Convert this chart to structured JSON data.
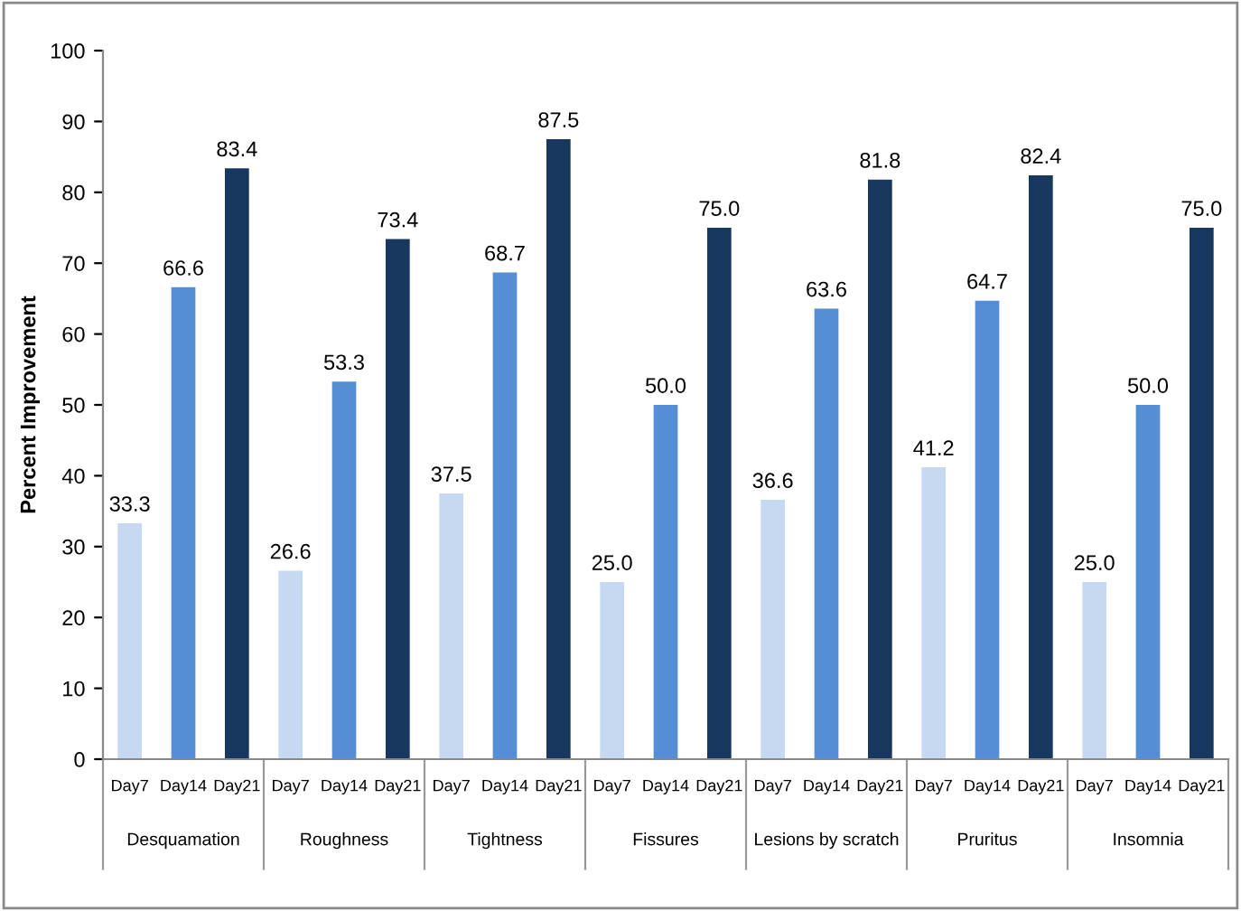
{
  "chart_data": {
    "type": "bar",
    "ylabel": "Percent Improvement",
    "categories": [
      "Day7",
      "Day14",
      "Day21",
      "Day7",
      "Day14",
      "Day21",
      "Day7",
      "Day14",
      "Day21",
      "Day7",
      "Day14",
      "Day21",
      "Day7",
      "Day14",
      "Day21",
      "Day7",
      "Day14",
      "Day21",
      "Day7",
      "Day14",
      "Day21"
    ],
    "values": [
      33.3,
      66.6,
      83.4,
      26.6,
      53.3,
      73.4,
      37.5,
      68.7,
      87.5,
      25.0,
      50.0,
      75.0,
      36.6,
      63.6,
      81.8,
      41.2,
      64.7,
      82.4,
      25.0,
      50.0,
      75.0
    ],
    "value_labels": [
      "33.3",
      "66.6",
      "83.4",
      "26.6",
      "53.3",
      "73.4",
      "37.5",
      "68.7",
      "87.5",
      "25.0",
      "50.0",
      "75.0",
      "36.6",
      "63.6",
      "81.8",
      "41.2",
      "64.7",
      "82.4",
      "25.0",
      "50.0",
      "75.0"
    ],
    "colors": [
      "#c6d9f1",
      "#558ed5",
      "#17375e",
      "#c6d9f1",
      "#558ed5",
      "#17375e",
      "#c6d9f1",
      "#558ed5",
      "#17375e",
      "#c6d9f1",
      "#558ed5",
      "#17375e",
      "#c6d9f1",
      "#558ed5",
      "#17375e",
      "#c6d9f1",
      "#558ed5",
      "#17375e",
      "#c6d9f1",
      "#558ed5",
      "#17375e"
    ],
    "annotations": [
      "Desquamation",
      "Roughness",
      "Tightness",
      "Fissures",
      "Lesions by scratch",
      "Pruritus",
      "Insomnia"
    ],
    "ylim": [
      0,
      100
    ],
    "yticks": [
      0,
      10,
      20,
      30,
      40,
      50,
      60,
      70,
      80,
      90,
      100
    ],
    "grid": false,
    "legend": false
  }
}
